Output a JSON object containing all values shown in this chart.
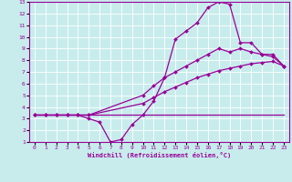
{
  "background_color": "#c8ecec",
  "line_color": "#990099",
  "xlabel": "Windchill (Refroidissement éolien,°C)",
  "xlim": [
    -0.5,
    23.5
  ],
  "ylim": [
    1,
    13
  ],
  "xticks": [
    0,
    1,
    2,
    3,
    4,
    5,
    6,
    7,
    8,
    9,
    10,
    11,
    12,
    13,
    14,
    15,
    16,
    17,
    18,
    19,
    20,
    21,
    22,
    23
  ],
  "yticks": [
    1,
    2,
    3,
    4,
    5,
    6,
    7,
    8,
    9,
    10,
    11,
    12,
    13
  ],
  "lines": [
    {
      "x": [
        0,
        23
      ],
      "y": [
        3.3,
        3.3
      ],
      "markers": false
    },
    {
      "x": [
        0,
        1,
        2,
        3,
        4,
        5,
        10,
        11,
        12,
        13,
        14,
        15,
        16,
        17,
        18,
        19,
        20,
        21,
        22,
        23
      ],
      "y": [
        3.3,
        3.3,
        3.3,
        3.3,
        3.3,
        3.3,
        4.3,
        4.8,
        5.3,
        5.7,
        6.1,
        6.5,
        6.8,
        7.1,
        7.3,
        7.5,
        7.7,
        7.8,
        7.9,
        7.5
      ],
      "markers": true
    },
    {
      "x": [
        0,
        1,
        2,
        3,
        4,
        5,
        6,
        7,
        8,
        9,
        10,
        11,
        12,
        13,
        14,
        15,
        16,
        17,
        18,
        19,
        20,
        21,
        22,
        23
      ],
      "y": [
        3.3,
        3.3,
        3.3,
        3.3,
        3.3,
        3.0,
        2.7,
        1.0,
        1.2,
        2.5,
        3.3,
        4.5,
        6.5,
        9.8,
        10.5,
        11.2,
        12.5,
        13.0,
        12.8,
        9.5,
        9.5,
        8.5,
        8.5,
        7.5
      ],
      "markers": true
    },
    {
      "x": [
        0,
        1,
        2,
        3,
        4,
        5,
        10,
        11,
        12,
        13,
        14,
        15,
        16,
        17,
        18,
        19,
        20,
        21,
        22,
        23
      ],
      "y": [
        3.3,
        3.3,
        3.3,
        3.3,
        3.3,
        3.3,
        5.0,
        5.8,
        6.5,
        7.0,
        7.5,
        8.0,
        8.5,
        9.0,
        8.7,
        9.0,
        8.7,
        8.5,
        8.3,
        7.5
      ],
      "markers": true
    }
  ]
}
